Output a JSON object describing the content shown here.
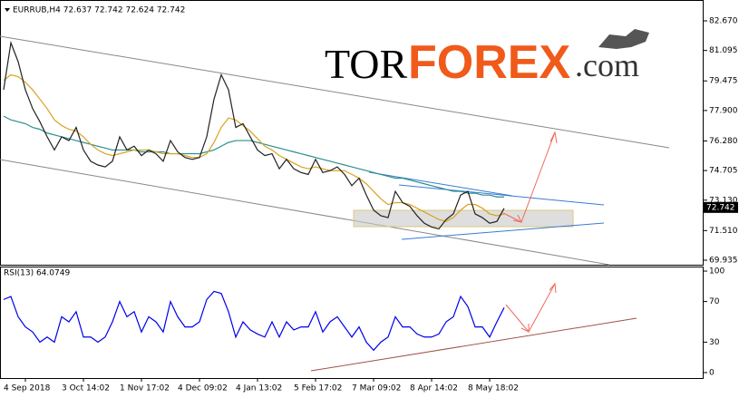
{
  "watermark": [
    "TOR",
    "FOREX",
    ".com"
  ],
  "chart_data": [
    {
      "type": "line",
      "title": "EURRUB,H4 72.637 72.742 72.624 72.742",
      "categories": [
        null,
        null,
        null,
        "4 Sep 2018",
        null,
        null,
        null,
        null,
        null,
        null,
        null,
        "3 Oct 14:02",
        null,
        null,
        null,
        null,
        null,
        null,
        null,
        "1 Nov 17:02",
        null,
        null,
        null,
        null,
        null,
        null,
        null,
        "4 Dec 09:02",
        null,
        null,
        null,
        null,
        null,
        null,
        null,
        "4 Jan 13:02",
        null,
        null,
        null,
        null,
        null,
        null,
        null,
        "5 Feb 17:02",
        null,
        null,
        null,
        null,
        null,
        null,
        null,
        "7 Mar 09:02",
        null,
        null,
        null,
        null,
        null,
        null,
        null,
        "8 Apr 14:02",
        null,
        null,
        null,
        null,
        null,
        null,
        null,
        "8 May 18:02",
        null,
        null
      ],
      "ylim": [
        69.694,
        83.538
      ],
      "yticks": [
        {
          "value": 82.67,
          "label": "82.670"
        },
        {
          "value": 81.095,
          "label": "81.095"
        },
        {
          "value": 79.475,
          "label": "79.475"
        },
        {
          "value": 77.9,
          "label": "77.900"
        },
        {
          "value": 76.28,
          "label": "76.280"
        },
        {
          "value": 74.705,
          "label": "74.705"
        },
        {
          "value": 73.13,
          "label": "73.130"
        },
        {
          "value": 71.51,
          "label": "71.510"
        },
        {
          "value": 69.935,
          "label": "69.935"
        }
      ],
      "last_price": 72.742,
      "series": [
        {
          "color": "#2a8f8f",
          "values": [
            77.6,
            77.4,
            77.3,
            77.2,
            77.0,
            76.9,
            76.7,
            76.6,
            76.5,
            76.4,
            76.3,
            76.2,
            76.1,
            76.0,
            75.9,
            75.8,
            75.8,
            75.8,
            75.8,
            75.7,
            75.7,
            75.7,
            75.7,
            75.6,
            75.6,
            75.6,
            75.6,
            75.6,
            75.7,
            75.8,
            76.0,
            76.2,
            76.3,
            76.3,
            76.3,
            76.2,
            76.1,
            76.0,
            75.9,
            75.8,
            75.7,
            75.6,
            75.5,
            75.4,
            75.3,
            75.2,
            75.1,
            75.0,
            74.9,
            74.8,
            74.7,
            74.6,
            74.5,
            74.4,
            74.3,
            74.3,
            74.2,
            74.1,
            74.0,
            73.9,
            73.8,
            73.7,
            73.6,
            73.6,
            73.5,
            73.5,
            73.4,
            73.4,
            73.3,
            73.3
          ]
        },
        {
          "color": "#d9a21b",
          "values": [
            79.5,
            79.8,
            79.7,
            79.4,
            79.0,
            78.5,
            78.0,
            77.4,
            77.1,
            76.9,
            76.8,
            76.5,
            76.1,
            75.8,
            75.6,
            75.5,
            75.6,
            75.7,
            75.8,
            75.8,
            75.8,
            75.7,
            75.6,
            75.6,
            75.6,
            75.5,
            75.4,
            75.4,
            75.6,
            76.2,
            77.0,
            77.5,
            77.4,
            77.1,
            76.8,
            76.4,
            76.0,
            75.8,
            75.5,
            75.3,
            75.1,
            74.9,
            74.8,
            74.9,
            74.8,
            74.7,
            74.7,
            74.7,
            74.5,
            74.3,
            74.0,
            73.6,
            73.2,
            72.9,
            73.0,
            73.0,
            72.9,
            72.7,
            72.5,
            72.3,
            72.1,
            72.0,
            72.2,
            72.6,
            72.9,
            72.9,
            72.7,
            72.4,
            72.3,
            72.4
          ]
        },
        {
          "color": "#222222",
          "values": [
            79.0,
            81.5,
            80.5,
            79.0,
            78.0,
            77.3,
            76.5,
            75.8,
            76.5,
            76.3,
            77.0,
            75.8,
            75.2,
            75.0,
            74.9,
            75.2,
            76.5,
            75.8,
            76.0,
            75.5,
            75.8,
            75.6,
            75.2,
            76.3,
            75.7,
            75.4,
            75.3,
            75.4,
            76.5,
            78.5,
            79.8,
            79.0,
            77.0,
            77.2,
            76.5,
            75.8,
            75.5,
            75.6,
            74.8,
            75.3,
            74.8,
            74.6,
            74.5,
            75.3,
            74.6,
            74.7,
            74.9,
            74.5,
            73.9,
            74.3,
            73.4,
            72.6,
            72.3,
            72.2,
            73.6,
            73.0,
            72.8,
            72.3,
            71.9,
            71.7,
            71.6,
            72.1,
            72.4,
            73.4,
            73.6,
            72.4,
            72.2,
            71.9,
            72.0,
            72.7
          ]
        }
      ]
    },
    {
      "type": "line",
      "title": "RSI(13) 64.0749",
      "ylim": [
        -5.4,
        103.6
      ],
      "yticks": [
        100,
        70,
        30,
        0
      ],
      "series": [
        {
          "color": "#0000ee",
          "values": [
            72,
            75,
            55,
            45,
            40,
            30,
            35,
            30,
            55,
            50,
            60,
            35,
            35,
            30,
            35,
            50,
            70,
            55,
            60,
            40,
            55,
            50,
            40,
            70,
            55,
            45,
            45,
            50,
            72,
            80,
            78,
            60,
            35,
            50,
            42,
            38,
            35,
            50,
            35,
            50,
            42,
            45,
            45,
            60,
            40,
            50,
            55,
            45,
            35,
            45,
            30,
            22,
            30,
            35,
            55,
            45,
            45,
            38,
            35,
            35,
            38,
            50,
            55,
            75,
            65,
            45,
            45,
            35,
            50,
            64
          ]
        }
      ]
    }
  ]
}
